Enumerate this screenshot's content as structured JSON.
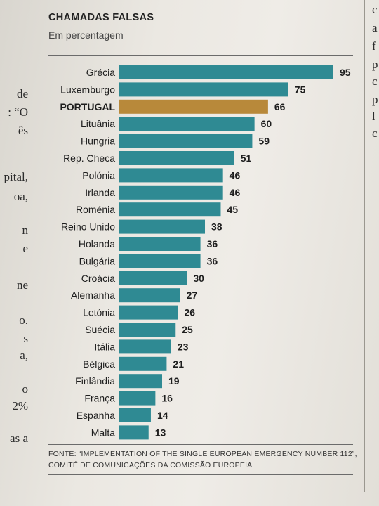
{
  "left_margin_text": [
    "de",
    ": “O",
    "ês",
    "pital,",
    "oa,",
    "n",
    "e",
    "ne",
    "o.",
    "s",
    "a,",
    "o",
    "2%",
    "as a"
  ],
  "right_margin_text": [
    "c",
    "a",
    "f",
    "p",
    "c",
    "p",
    "l",
    "c"
  ],
  "chart_data": {
    "type": "bar",
    "orientation": "horizontal",
    "title": "CHAMADAS FALSAS",
    "subtitle": "Em percentagem",
    "xlabel": "",
    "ylabel": "",
    "xlim": [
      0,
      100
    ],
    "grid": false,
    "categories": [
      "Grécia",
      "Luxemburgo",
      "PORTUGAL",
      "Lituânia",
      "Hungria",
      "Rep. Checa",
      "Polónia",
      "Irlanda",
      "Roménia",
      "Reino Unido",
      "Holanda",
      "Bulgária",
      "Croácia",
      "Alemanha",
      "Letónia",
      "Suécia",
      "Itália",
      "Bélgica",
      "Finlândia",
      "França",
      "Espanha",
      "Malta"
    ],
    "values": [
      95,
      75,
      66,
      60,
      59,
      51,
      46,
      46,
      45,
      38,
      36,
      36,
      30,
      27,
      26,
      25,
      23,
      21,
      19,
      16,
      14,
      13
    ],
    "highlight": "PORTUGAL",
    "colors": {
      "bar": "#2f8a93",
      "highlight": "#b8893a"
    },
    "source": "FONTE: “IMPLEMENTATION OF THE SINGLE EUROPEAN EMERGENCY NUMBER 112”, COMITÉ DE COMUNICAÇÕES DA COMISSÃO EUROPEIA"
  }
}
